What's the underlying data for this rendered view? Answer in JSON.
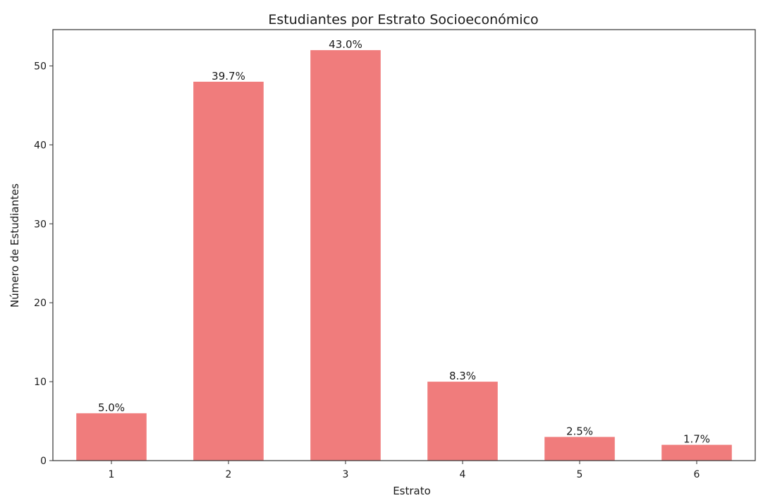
{
  "chart_data": {
    "type": "bar",
    "title": "Estudiantes por Estrato Socioeconómico",
    "xlabel": "Estrato",
    "ylabel": "Número de Estudiantes",
    "categories": [
      "1",
      "2",
      "3",
      "4",
      "5",
      "6"
    ],
    "values": [
      6,
      48,
      52,
      10,
      3,
      2
    ],
    "data_labels": [
      "5.0%",
      "39.7%",
      "43.0%",
      "8.3%",
      "2.5%",
      "1.7%"
    ],
    "y_ticks": [
      0,
      10,
      20,
      30,
      40,
      50
    ],
    "ylim": [
      0,
      54.6
    ],
    "bar_color": "#f07c7c",
    "grid": false,
    "legend": "none"
  }
}
